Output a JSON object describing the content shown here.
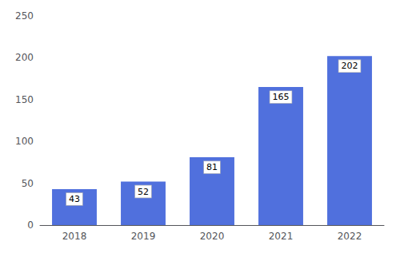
{
  "chart_data": {
    "type": "bar",
    "categories": [
      "2018",
      "2019",
      "2020",
      "2021",
      "2022"
    ],
    "values": [
      43,
      52,
      81,
      165,
      202
    ],
    "ylim": [
      0,
      250
    ],
    "yticks": [
      0,
      50,
      100,
      150,
      200,
      250
    ],
    "grid": false,
    "data_labels": true
  }
}
